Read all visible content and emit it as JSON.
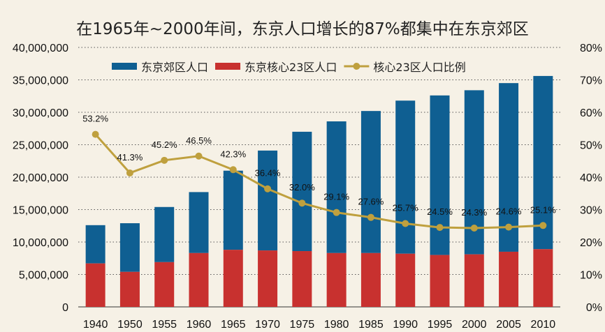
{
  "chart_data": {
    "type": "bar",
    "title": "在1965年~2000年间，东京人口增长的87%都集中在东京郊区",
    "categories": [
      "1940",
      "1950",
      "1955",
      "1960",
      "1965",
      "1970",
      "1975",
      "1980",
      "1985",
      "1990",
      "1995",
      "2000",
      "2005",
      "2010"
    ],
    "series": [
      {
        "name": "东京郊区人口",
        "kind": "stacked-bar",
        "axis": "left",
        "color": "#0f5f92",
        "values": [
          5900000,
          7500000,
          8500000,
          9400000,
          12200000,
          15400000,
          18400000,
          20300000,
          21900000,
          23600000,
          24600000,
          25300000,
          26000000,
          26700000
        ]
      },
      {
        "name": "东京核心23区人口",
        "kind": "stacked-bar",
        "axis": "left",
        "color": "#c8312f",
        "values": [
          6700000,
          5400000,
          6900000,
          8300000,
          8800000,
          8700000,
          8600000,
          8300000,
          8300000,
          8200000,
          8000000,
          8100000,
          8500000,
          8900000
        ]
      },
      {
        "name": "核心23区人口比例",
        "kind": "line",
        "axis": "right",
        "color": "#bfa03e",
        "values": [
          53.2,
          41.3,
          45.2,
          46.5,
          42.3,
          36.4,
          32.0,
          29.1,
          27.6,
          25.7,
          24.5,
          24.3,
          24.6,
          25.1
        ],
        "labels": [
          "53.2%",
          "41.3%",
          "45.2%",
          "46.5%",
          "42.3%",
          "36.4%",
          "32.0%",
          "29.1%",
          "27.6%",
          "25.7%",
          "24.5%",
          "24.3%",
          "24.6%",
          "25.1%"
        ]
      }
    ],
    "ylim": [
      0,
      40000000
    ],
    "y2lim": [
      0,
      80
    ],
    "yticks": [
      "0",
      "5,000,000",
      "10,000,000",
      "15,000,000",
      "20,000,000",
      "25,000,000",
      "30,000,000",
      "35,000,000",
      "40,000,000"
    ],
    "y2ticks": [
      "0%",
      "10%",
      "20%",
      "30%",
      "40%",
      "50%",
      "60%",
      "70%",
      "80%"
    ],
    "grid": true,
    "legend": "top"
  }
}
